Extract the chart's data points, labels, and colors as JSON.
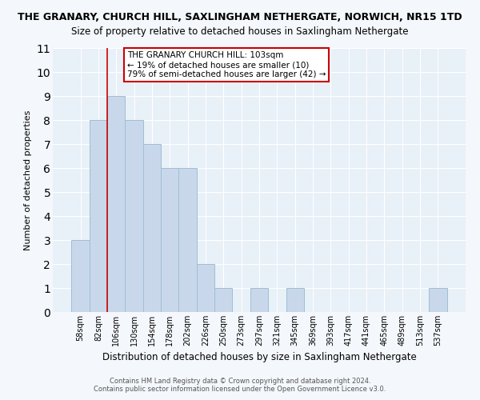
{
  "title": "THE GRANARY, CHURCH HILL, SAXLINGHAM NETHERGATE, NORWICH, NR15 1TD",
  "subtitle": "Size of property relative to detached houses in Saxlingham Nethergate",
  "xlabel": "Distribution of detached houses by size in Saxlingham Nethergate",
  "ylabel": "Number of detached properties",
  "bin_labels": [
    "58sqm",
    "82sqm",
    "106sqm",
    "130sqm",
    "154sqm",
    "178sqm",
    "202sqm",
    "226sqm",
    "250sqm",
    "273sqm",
    "297sqm",
    "321sqm",
    "345sqm",
    "369sqm",
    "393sqm",
    "417sqm",
    "441sqm",
    "465sqm",
    "489sqm",
    "513sqm",
    "537sqm"
  ],
  "bar_values": [
    3,
    8,
    9,
    8,
    7,
    6,
    6,
    2,
    1,
    0,
    1,
    0,
    1,
    0,
    0,
    0,
    0,
    0,
    0,
    0,
    1
  ],
  "bar_color": "#c8d8ea",
  "bar_edge_color": "#a0bdd4",
  "vline_index": 2,
  "vline_color": "#cc0000",
  "ylim_max": 11,
  "yticks": [
    0,
    1,
    2,
    3,
    4,
    5,
    6,
    7,
    8,
    9,
    10,
    11
  ],
  "annotation_line1": "THE GRANARY CHURCH HILL: 103sqm",
  "annotation_line2": "← 19% of detached houses are smaller (10)",
  "annotation_line3": "79% of semi-detached houses are larger (42) →",
  "annotation_box_facecolor": "#ffffff",
  "annotation_box_edgecolor": "#cc0000",
  "footer1": "Contains HM Land Registry data © Crown copyright and database right 2024.",
  "footer2": "Contains public sector information licensed under the Open Government Licence v3.0.",
  "plot_bg_color": "#e8f0f8",
  "fig_bg_color": "#f4f7fb",
  "grid_color": "#ffffff",
  "title_fontsize": 9,
  "subtitle_fontsize": 8.5,
  "ylabel_fontsize": 8,
  "xlabel_fontsize": 8.5,
  "tick_fontsize": 7,
  "footer_fontsize": 6,
  "annot_fontsize": 7.5
}
